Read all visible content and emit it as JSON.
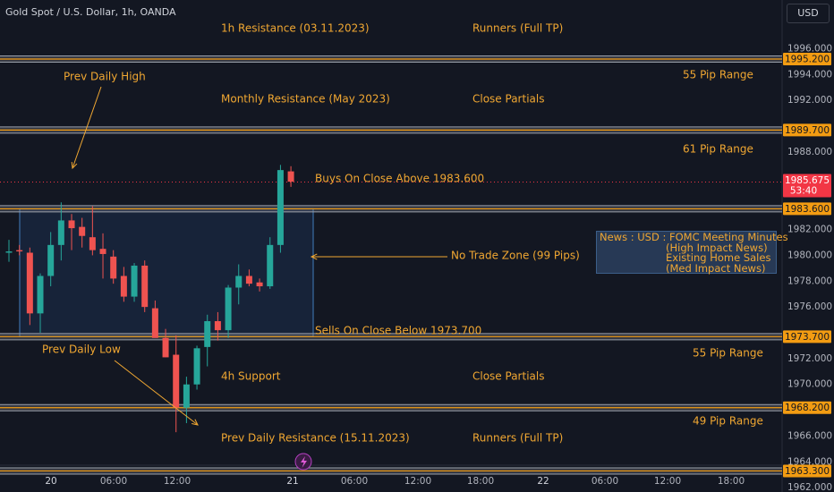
{
  "header": {
    "title": "Gold Spot / U.S. Dollar, 1h, OANDA",
    "currency_button": "USD"
  },
  "chart_data": {
    "type": "candlestick",
    "ylim": [
      1962.0,
      1997.0
    ],
    "y_ticks": [
      "1996.000",
      "1994.000",
      "1992.000",
      "1988.000",
      "1982.000",
      "1980.000",
      "1978.000",
      "1976.000",
      "1972.000",
      "1970.000",
      "1966.000",
      "1964.000",
      "1962.000"
    ],
    "x_ticks": [
      "20",
      "06:00",
      "12:00",
      "21",
      "06:00",
      "12:00",
      "18:00",
      "22",
      "06:00",
      "12:00",
      "18:00"
    ],
    "candles": [
      {
        "o": 1980.2,
        "h": 1981.2,
        "l": 1979.5,
        "c": 1980.3
      },
      {
        "o": 1980.4,
        "h": 1980.8,
        "l": 1980.0,
        "c": 1980.3
      },
      {
        "o": 1980.2,
        "h": 1980.6,
        "l": 1974.6,
        "c": 1975.5
      },
      {
        "o": 1975.5,
        "h": 1978.6,
        "l": 1974.0,
        "c": 1978.4
      },
      {
        "o": 1978.4,
        "h": 1981.8,
        "l": 1977.6,
        "c": 1980.8
      },
      {
        "o": 1980.8,
        "h": 1984.1,
        "l": 1979.6,
        "c": 1982.7
      },
      {
        "o": 1982.7,
        "h": 1983.2,
        "l": 1980.4,
        "c": 1982.1
      },
      {
        "o": 1982.2,
        "h": 1982.9,
        "l": 1980.6,
        "c": 1981.5
      },
      {
        "o": 1981.4,
        "h": 1983.8,
        "l": 1980.0,
        "c": 1980.4
      },
      {
        "o": 1980.5,
        "h": 1981.7,
        "l": 1978.2,
        "c": 1980.1
      },
      {
        "o": 1979.9,
        "h": 1980.4,
        "l": 1977.8,
        "c": 1978.2
      },
      {
        "o": 1978.4,
        "h": 1979.1,
        "l": 1976.4,
        "c": 1976.8
      },
      {
        "o": 1976.8,
        "h": 1979.4,
        "l": 1976.4,
        "c": 1979.2
      },
      {
        "o": 1979.2,
        "h": 1979.6,
        "l": 1975.6,
        "c": 1976.0
      },
      {
        "o": 1975.9,
        "h": 1976.5,
        "l": 1973.8,
        "c": 1973.6
      },
      {
        "o": 1973.6,
        "h": 1974.3,
        "l": 1972.1,
        "c": 1972.1
      },
      {
        "o": 1972.3,
        "h": 1973.8,
        "l": 1966.3,
        "c": 1968.2
      },
      {
        "o": 1968.2,
        "h": 1970.6,
        "l": 1967.0,
        "c": 1970.0
      },
      {
        "o": 1970.0,
        "h": 1973.0,
        "l": 1969.6,
        "c": 1972.8
      },
      {
        "o": 1972.9,
        "h": 1975.4,
        "l": 1971.4,
        "c": 1974.9
      },
      {
        "o": 1974.9,
        "h": 1975.6,
        "l": 1973.4,
        "c": 1974.2
      },
      {
        "o": 1974.2,
        "h": 1977.7,
        "l": 1973.6,
        "c": 1977.5
      },
      {
        "o": 1977.5,
        "h": 1979.3,
        "l": 1976.2,
        "c": 1978.4
      },
      {
        "o": 1978.4,
        "h": 1978.9,
        "l": 1977.6,
        "c": 1977.8
      },
      {
        "o": 1977.9,
        "h": 1978.2,
        "l": 1977.2,
        "c": 1977.6
      },
      {
        "o": 1977.6,
        "h": 1981.4,
        "l": 1977.4,
        "c": 1980.8
      },
      {
        "o": 1980.8,
        "h": 1987.0,
        "l": 1980.2,
        "c": 1986.6
      },
      {
        "o": 1986.5,
        "h": 1986.9,
        "l": 1985.3,
        "c": 1985.7
      }
    ],
    "levels": [
      {
        "value": 1995.2,
        "label": "1995.200"
      },
      {
        "value": 1989.7,
        "label": "1989.700"
      },
      {
        "value": 1983.6,
        "label": "1983.600"
      },
      {
        "value": 1973.7,
        "label": "1973.700"
      },
      {
        "value": 1968.2,
        "label": "1968.200"
      },
      {
        "value": 1963.3,
        "label": "1963.300"
      }
    ],
    "current_price": {
      "value": 1985.675,
      "label": "1985.675",
      "countdown": "53:40"
    },
    "no_trade_zone": {
      "high": 1983.6,
      "low": 1973.7
    },
    "annotations": [
      "1h Resistance (03.11.2023)",
      "Runners (Full TP)",
      "55 Pip Range",
      "Prev Daily High",
      "Monthly Resistance (May 2023)",
      "Close Partials",
      "61 Pip Range",
      "Buys On Close Above 1983.600",
      "No Trade Zone (99 Pips)",
      "Sells On Close Below 1973.700",
      "Prev Daily Low",
      "55 Pip Range",
      "4h Support",
      "Close Partials",
      "49 Pip Range",
      "Prev Daily Resistance (15.11.2023)",
      "Runners (Full TP)"
    ],
    "news": {
      "line1": "News : USD : FOMC Meeting Minutes",
      "line2": "(High Impact News)",
      "line3": "Existing Home Sales",
      "line4": "(Med Impact News)"
    },
    "colors": {
      "up": "#26a69a",
      "down": "#ef5350",
      "label": "#f0a732",
      "level_tag": "#f39c12",
      "price_tag": "#f23645",
      "zone": "#3b6ea5"
    }
  }
}
